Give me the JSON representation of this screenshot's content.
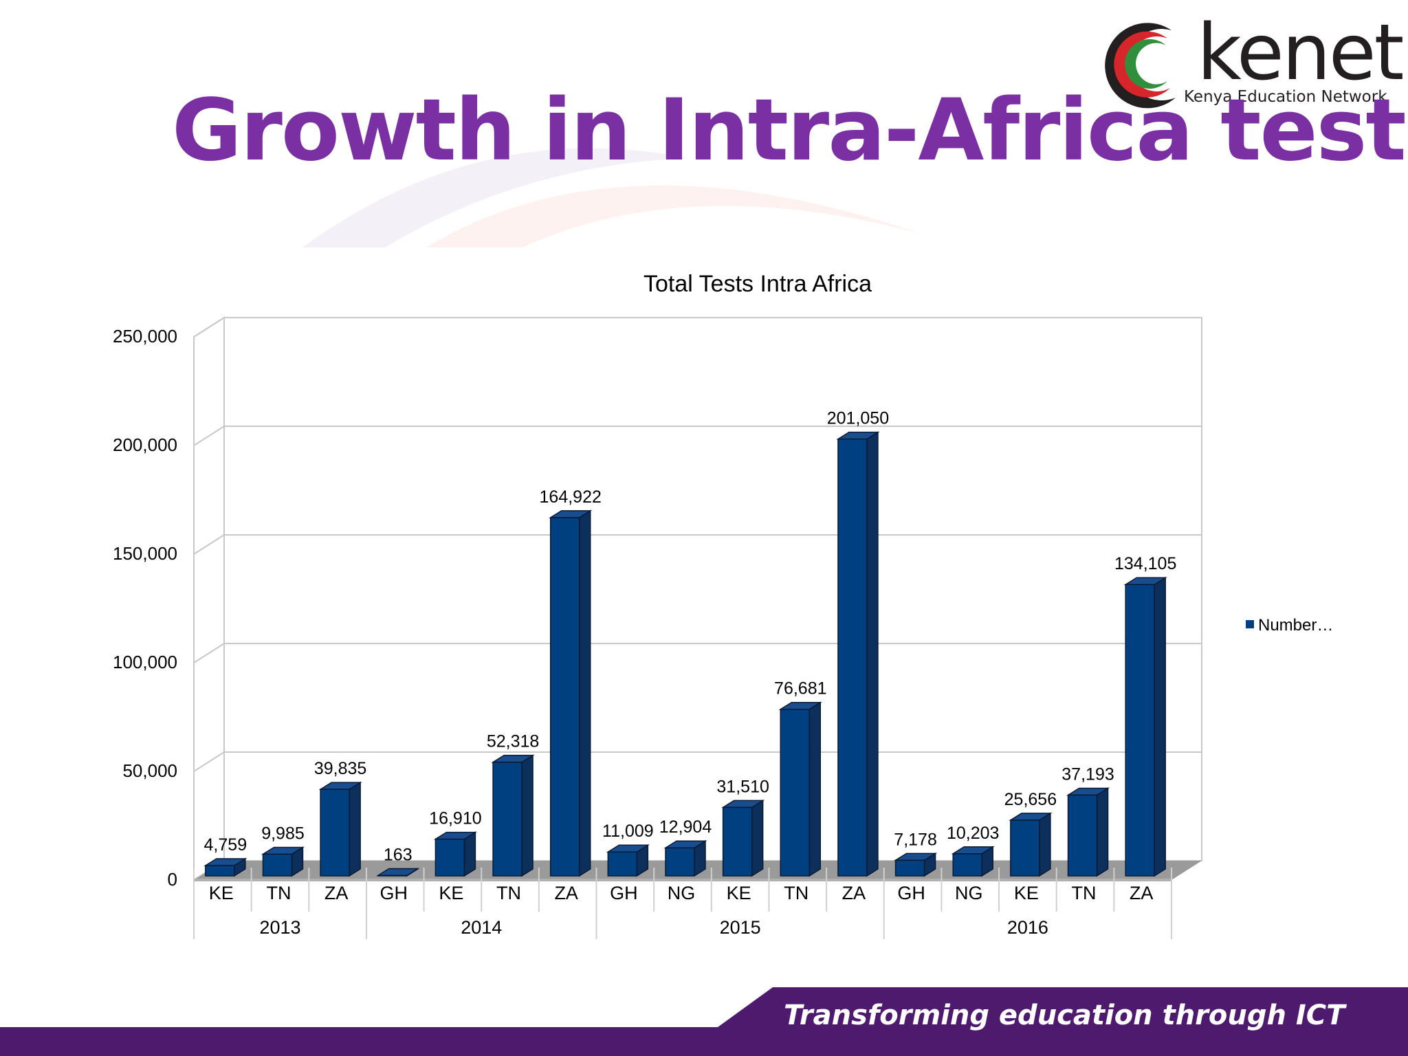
{
  "slide": {
    "title": "Growth in Intra-Africa tests",
    "footer_tagline": "Transforming education through ICT",
    "logo": {
      "wordmark": "kenet",
      "subtitle": "Kenya Education Network"
    },
    "colors": {
      "title": "#7a2fa3",
      "footer_bar": "#4e1a6e",
      "bar_front": "#004080",
      "bar_side": "#0d2f5c",
      "bar_top": "#184d8f"
    }
  },
  "chart_data": {
    "type": "bar",
    "title": "Total Tests Intra Africa",
    "categories": [
      "KE",
      "TN",
      "ZA",
      "GH",
      "KE",
      "TN",
      "ZA",
      "GH",
      "NG",
      "KE",
      "TN",
      "ZA",
      "GH",
      "NG",
      "KE",
      "TN",
      "ZA"
    ],
    "groups": [
      {
        "label": "2013",
        "count": 3
      },
      {
        "label": "2014",
        "count": 4
      },
      {
        "label": "2015",
        "count": 5
      },
      {
        "label": "2016",
        "count": 5
      }
    ],
    "series": [
      {
        "name": "Number…",
        "values": [
          4759,
          9985,
          39835,
          163,
          16910,
          52318,
          164922,
          11009,
          12904,
          31510,
          76681,
          201050,
          7178,
          10203,
          25656,
          37193,
          134105
        ]
      }
    ],
    "data_labels": [
      "4,759",
      "9,985",
      "39,835",
      "163",
      "16,910",
      "52,318",
      "164,922",
      "11,009",
      "12,904",
      "31,510",
      "76,681",
      "201,050",
      "7,178",
      "10,203",
      "25,656",
      "37,193",
      "134,105"
    ],
    "ylim": [
      0,
      250000
    ],
    "yticks": [
      "0",
      "50,000",
      "100,000",
      "150,000",
      "200,000",
      "250,000"
    ],
    "ytick_values": [
      0,
      50000,
      100000,
      150000,
      200000,
      250000
    ],
    "grid": true,
    "legend": "right",
    "three_d": true
  }
}
